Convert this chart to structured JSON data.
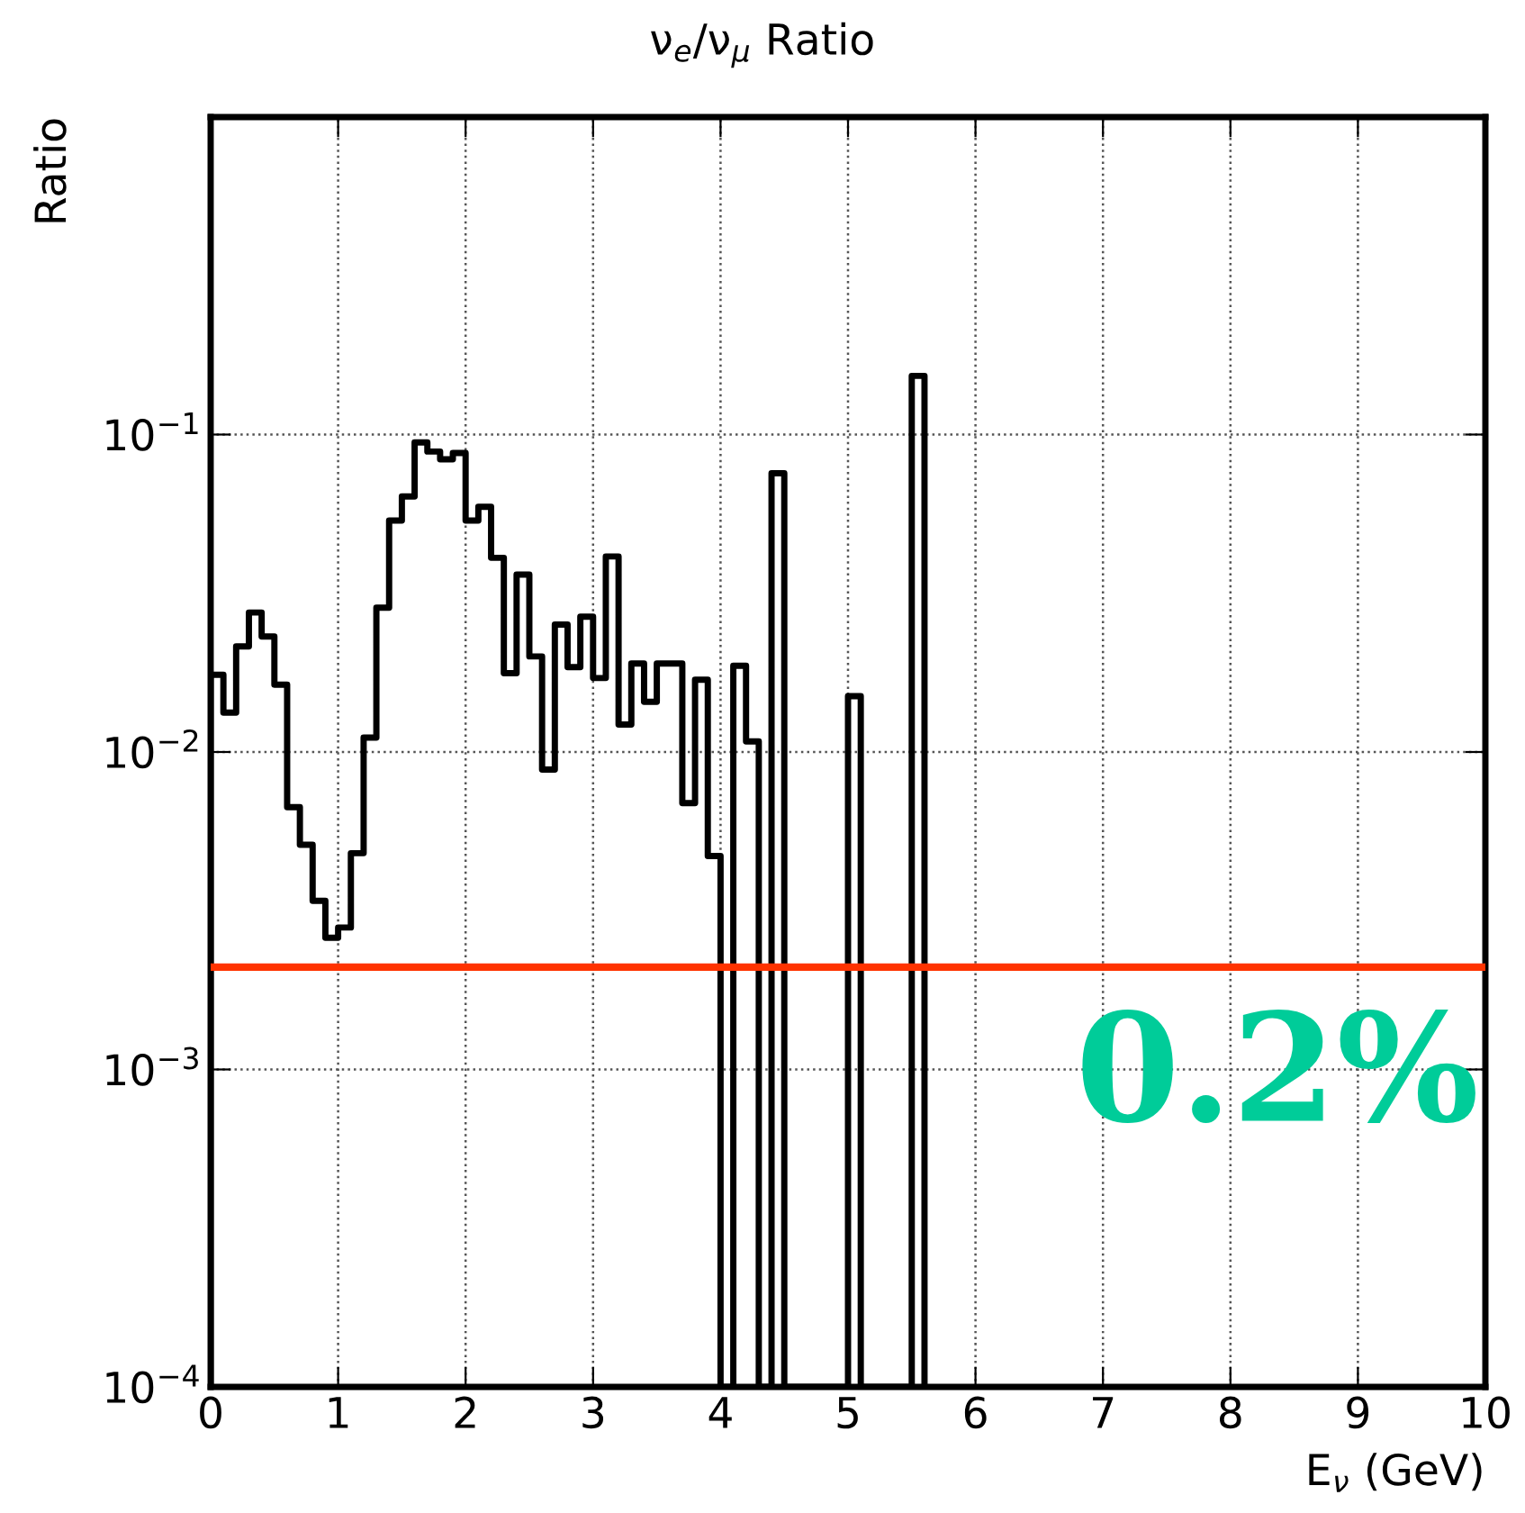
{
  "chart_data": {
    "type": "histogram",
    "title": "ν$_{e}$/ν$_{μ}$ Ratio",
    "xlabel": "E$_{ν}$ (GeV)",
    "ylabel": "Ratio",
    "bins": [
      0,
      0.1,
      0.2,
      0.3,
      0.4,
      0.5,
      0.6,
      0.7,
      0.8,
      0.9,
      1.0,
      1.1,
      1.2,
      1.3,
      1.4,
      1.5,
      1.6,
      1.7,
      1.8,
      1.9,
      2.0,
      2.1,
      2.2,
      2.3,
      2.4,
      2.5,
      2.6,
      2.7,
      2.8,
      2.9,
      3.0,
      3.1,
      3.2,
      3.3,
      3.4,
      3.5,
      3.6,
      3.7,
      3.8,
      3.9,
      4.0,
      4.1,
      4.2,
      4.3,
      4.4,
      4.5,
      4.6,
      4.7,
      4.8,
      4.9,
      5.0,
      5.1,
      5.2,
      5.3,
      5.4,
      5.5,
      5.6
    ],
    "values": [
      0.0175,
      0.0133,
      0.0215,
      0.0275,
      0.0231,
      0.0163,
      0.0067,
      0.0051,
      0.0034,
      0.0026,
      0.0028,
      0.0048,
      0.0111,
      0.0285,
      0.0536,
      0.0638,
      0.0944,
      0.0884,
      0.0836,
      0.0875,
      0.0536,
      0.0592,
      0.0409,
      0.0177,
      0.0362,
      0.02,
      0.0088,
      0.0252,
      0.0185,
      0.0267,
      0.0171,
      0.0413,
      0.0122,
      0.019,
      0.0144,
      0.019,
      0.019,
      0.0069,
      0.0169,
      0.0047,
      null,
      0.0187,
      0.0108,
      null,
      0.0755,
      null,
      null,
      null,
      null,
      null,
      0.015,
      null,
      null,
      null,
      null,
      0.153
    ],
    "color": "#000000",
    "log": "y",
    "grid": true,
    "line_style": "dotted",
    "xlim": [
      0,
      10
    ],
    "xticks": [
      0,
      1,
      2,
      3,
      4,
      5,
      6,
      7,
      8,
      9,
      10
    ],
    "ylim": [
      0.0001,
      1
    ],
    "yticks": [
      {
        "value": 0.0001,
        "label": "10$^{−4}$"
      },
      {
        "value": 0.001,
        "label": "10$^{−3}$"
      },
      {
        "value": 0.01,
        "label": "10$^{−2}$"
      },
      {
        "value": 0.1,
        "label": "10$^{−1}$"
      }
    ],
    "ref_lines": [
      {
        "axis": "y",
        "value": 0.0021,
        "label": "0.2%",
        "color": "#ff3300"
      }
    ]
  }
}
